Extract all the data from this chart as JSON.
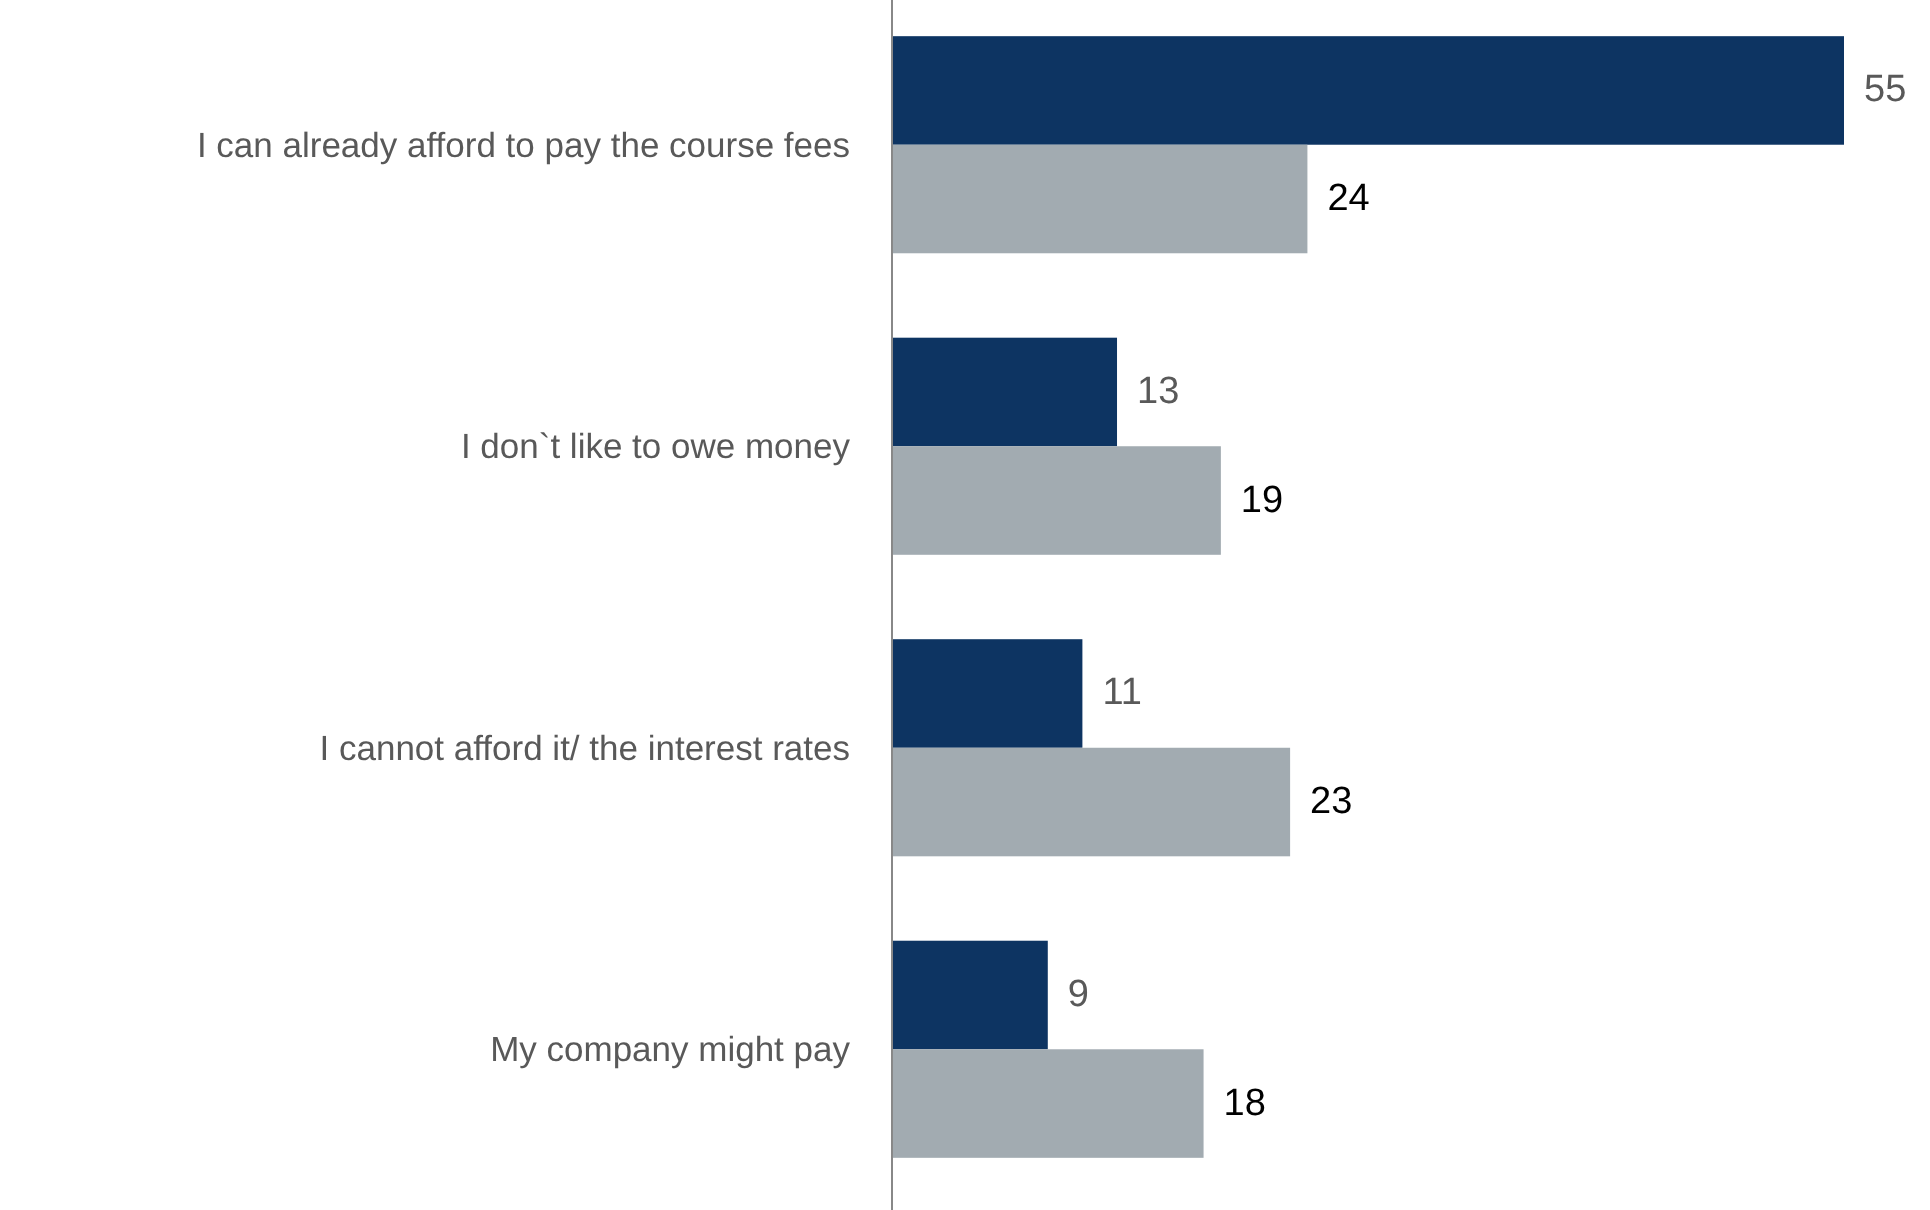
{
  "chart_data": {
    "type": "bar",
    "orientation": "horizontal",
    "data_labels": true,
    "categories": [
      "I can already afford to pay the course fees",
      "I don`t like to owe money",
      "I cannot afford it/ the interest rates",
      "My company might pay"
    ],
    "series": [
      {
        "color": "#0d3462",
        "values": [
          55,
          13,
          11,
          9
        ]
      },
      {
        "color": "#a2abb1",
        "values": [
          24,
          19,
          23,
          18
        ]
      }
    ]
  }
}
